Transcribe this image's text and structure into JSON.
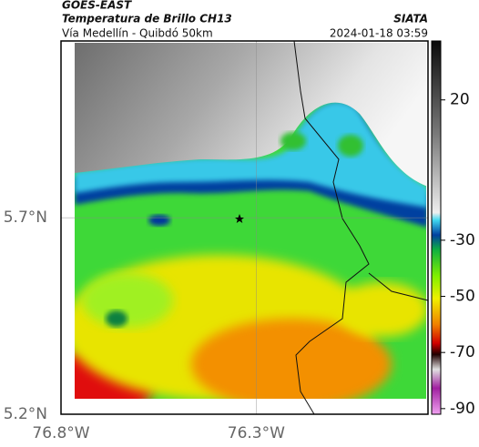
{
  "header": {
    "title": "GOES-EAST",
    "subtitle": "Temperatura de Brillo CH13",
    "place": "Vía Medellín - Quibdó 50km",
    "source": "SIATA",
    "datetime": "2024-01-18 03:59"
  },
  "map": {
    "xlim": [
      -76.8,
      -75.86
    ],
    "ylim": [
      5.2,
      6.15
    ],
    "xticks": [
      {
        "value": -76.8,
        "label": "76.8°W"
      },
      {
        "value": -76.3,
        "label": "76.3°W"
      }
    ],
    "yticks": [
      {
        "value": 5.2,
        "label": "5.2°N"
      },
      {
        "value": 5.7,
        "label": "5.7°N"
      }
    ],
    "grid": true
  },
  "colorbar": {
    "clim": [
      -92,
      41
    ],
    "ticks": [
      20,
      -30,
      -50,
      -70,
      -90
    ]
  }
}
